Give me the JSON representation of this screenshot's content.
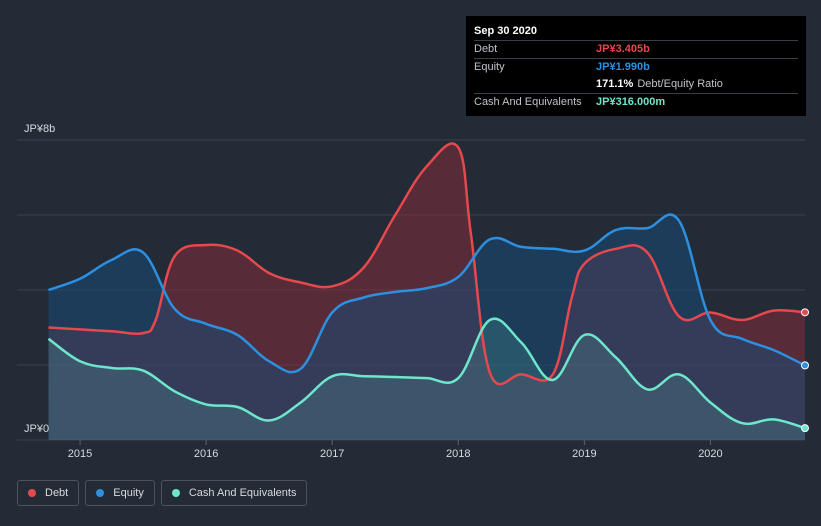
{
  "colors": {
    "debt": "#e5484d",
    "equity": "#2d8fe0",
    "cash": "#6ee6cc",
    "grid": "#3a4250",
    "text": "#d7dade"
  },
  "tooltip": {
    "date": "Sep 30 2020",
    "debt_label": "Debt",
    "debt_value": "JP¥3.405b",
    "equity_label": "Equity",
    "equity_value": "JP¥1.990b",
    "ratio_value": "171.1%",
    "ratio_label": "Debt/Equity Ratio",
    "cash_label": "Cash And Equivalents",
    "cash_value": "JP¥316.000m"
  },
  "legend": {
    "debt": "Debt",
    "equity": "Equity",
    "cash": "Cash And Equivalents"
  },
  "chart_data": {
    "type": "area",
    "title": "",
    "y_unit": "JP¥ billions",
    "ylim": [
      0,
      8
    ],
    "y_tick_labels": [
      "JP¥0",
      "JP¥8b"
    ],
    "x_tick_labels": [
      "2015",
      "2016",
      "2017",
      "2018",
      "2019",
      "2020"
    ],
    "x_ticks": [
      2015.0,
      2016.0,
      2017.0,
      2018.0,
      2019.0,
      2020.0
    ],
    "xlim": [
      2014.5,
      2020.75
    ],
    "series": [
      {
        "name": "Debt",
        "points": [
          [
            2014.75,
            3.0
          ],
          [
            2015.0,
            2.95
          ],
          [
            2015.25,
            2.9
          ],
          [
            2015.5,
            2.85
          ],
          [
            2015.6,
            3.2
          ],
          [
            2015.75,
            4.9
          ],
          [
            2016.0,
            5.2
          ],
          [
            2016.25,
            5.05
          ],
          [
            2016.5,
            4.45
          ],
          [
            2016.75,
            4.2
          ],
          [
            2017.0,
            4.1
          ],
          [
            2017.25,
            4.6
          ],
          [
            2017.5,
            6.0
          ],
          [
            2017.75,
            7.3
          ],
          [
            2018.0,
            7.8
          ],
          [
            2018.1,
            5.5
          ],
          [
            2018.25,
            1.8
          ],
          [
            2018.5,
            1.75
          ],
          [
            2018.75,
            1.75
          ],
          [
            2018.9,
            3.8
          ],
          [
            2019.0,
            4.7
          ],
          [
            2019.25,
            5.1
          ],
          [
            2019.5,
            5.0
          ],
          [
            2019.75,
            3.3
          ],
          [
            2020.0,
            3.4
          ],
          [
            2020.25,
            3.2
          ],
          [
            2020.5,
            3.45
          ],
          [
            2020.75,
            3.405
          ]
        ]
      },
      {
        "name": "Equity",
        "points": [
          [
            2014.75,
            4.0
          ],
          [
            2015.0,
            4.3
          ],
          [
            2015.25,
            4.8
          ],
          [
            2015.5,
            5.0
          ],
          [
            2015.75,
            3.5
          ],
          [
            2016.0,
            3.1
          ],
          [
            2016.25,
            2.8
          ],
          [
            2016.5,
            2.1
          ],
          [
            2016.75,
            1.9
          ],
          [
            2017.0,
            3.4
          ],
          [
            2017.25,
            3.8
          ],
          [
            2017.5,
            3.95
          ],
          [
            2017.75,
            4.05
          ],
          [
            2018.0,
            4.35
          ],
          [
            2018.25,
            5.35
          ],
          [
            2018.5,
            5.15
          ],
          [
            2018.75,
            5.1
          ],
          [
            2019.0,
            5.05
          ],
          [
            2019.25,
            5.6
          ],
          [
            2019.5,
            5.65
          ],
          [
            2019.75,
            5.85
          ],
          [
            2020.0,
            3.2
          ],
          [
            2020.25,
            2.7
          ],
          [
            2020.5,
            2.4
          ],
          [
            2020.75,
            1.99
          ]
        ]
      },
      {
        "name": "Cash And Equivalents",
        "points": [
          [
            2014.75,
            2.7
          ],
          [
            2015.0,
            2.1
          ],
          [
            2015.25,
            1.92
          ],
          [
            2015.5,
            1.85
          ],
          [
            2015.75,
            1.3
          ],
          [
            2016.0,
            0.95
          ],
          [
            2016.25,
            0.88
          ],
          [
            2016.5,
            0.52
          ],
          [
            2016.75,
            1.0
          ],
          [
            2017.0,
            1.7
          ],
          [
            2017.25,
            1.7
          ],
          [
            2017.5,
            1.68
          ],
          [
            2017.75,
            1.65
          ],
          [
            2018.0,
            1.65
          ],
          [
            2018.25,
            3.2
          ],
          [
            2018.5,
            2.6
          ],
          [
            2018.75,
            1.6
          ],
          [
            2019.0,
            2.8
          ],
          [
            2019.25,
            2.2
          ],
          [
            2019.5,
            1.35
          ],
          [
            2019.75,
            1.75
          ],
          [
            2020.0,
            1.0
          ],
          [
            2020.25,
            0.45
          ],
          [
            2020.5,
            0.55
          ],
          [
            2020.75,
            0.316
          ]
        ]
      }
    ]
  }
}
